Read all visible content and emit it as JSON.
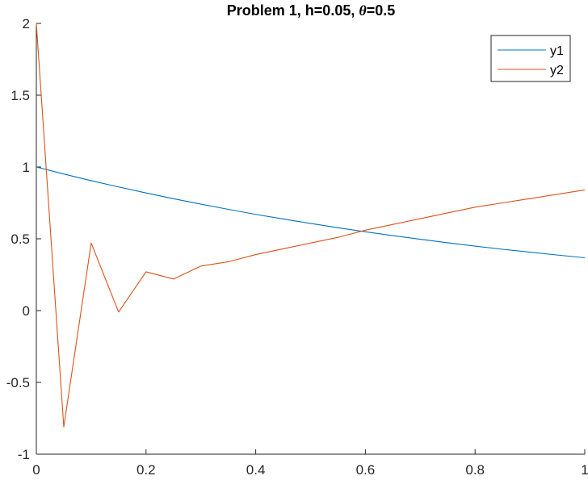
{
  "chart_data": {
    "type": "line",
    "title": "Problem 1, h=0.05, θ=0.5",
    "title_parts": {
      "prefix": "Problem 1, h=0.05, ",
      "symbol": "θ",
      "suffix": "=0.5"
    },
    "xlabel": "",
    "ylabel": "",
    "xlim": [
      0,
      1
    ],
    "ylim": [
      -1,
      2
    ],
    "x_ticks": [
      0,
      0.2,
      0.4,
      0.6,
      0.8,
      1
    ],
    "x_tick_labels": [
      "0",
      "0.2",
      "0.4",
      "0.6",
      "0.8",
      "1"
    ],
    "y_ticks": [
      -1,
      -0.5,
      0,
      0.5,
      1,
      1.5,
      2
    ],
    "y_tick_labels": [
      "-1",
      "-0.5",
      "0",
      "0.5",
      "1",
      "1.5",
      "2"
    ],
    "grid": false,
    "legend_position": "top-right",
    "x": [
      0,
      0.05,
      0.1,
      0.15,
      0.2,
      0.25,
      0.3,
      0.35,
      0.4,
      0.45,
      0.5,
      0.55,
      0.6,
      0.65,
      0.7,
      0.75,
      0.8,
      0.85,
      0.9,
      0.95,
      1.0
    ],
    "series": [
      {
        "name": "y1",
        "color": "#0072BD",
        "values": [
          1.0,
          0.951,
          0.905,
          0.861,
          0.819,
          0.779,
          0.741,
          0.705,
          0.67,
          0.638,
          0.607,
          0.577,
          0.549,
          0.522,
          0.497,
          0.472,
          0.449,
          0.427,
          0.407,
          0.387,
          0.368
        ]
      },
      {
        "name": "y2",
        "color": "#D95319",
        "values": [
          2.0,
          -0.81,
          0.47,
          -0.01,
          0.27,
          0.22,
          0.31,
          0.34,
          0.39,
          0.43,
          0.47,
          0.51,
          0.56,
          0.6,
          0.64,
          0.68,
          0.72,
          0.75,
          0.78,
          0.81,
          0.84
        ]
      }
    ]
  }
}
